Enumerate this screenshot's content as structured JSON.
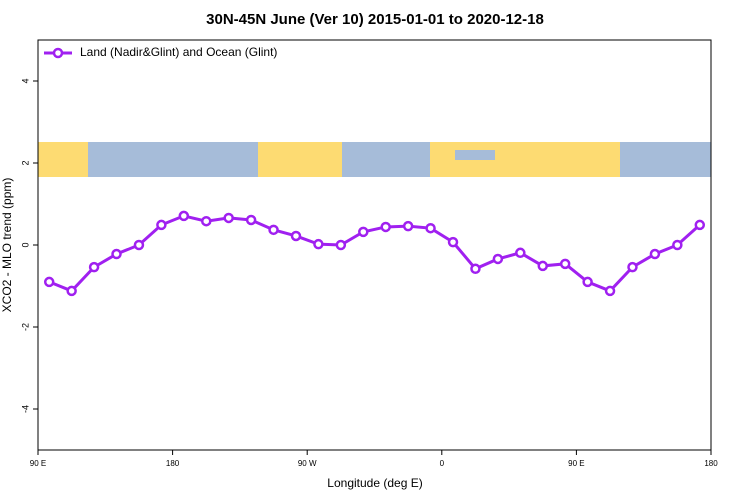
{
  "chart_data": {
    "type": "line",
    "title": "30N-45N June (Ver 10)   2015-01-01 to 2020-12-18",
    "x_label": "Longitude (deg E)",
    "y_label": "XCO2 - MLO trend (ppm)",
    "x": [
      97.5,
      112.5,
      127.5,
      142.5,
      157.5,
      172.5,
      187.5,
      202.5,
      217.5,
      232.5,
      247.5,
      262.5,
      277.5,
      292.5,
      307.5,
      322.5,
      337.5,
      352.5,
      367.5,
      382.5,
      397.5,
      412.5,
      427.5,
      442.5,
      457.5,
      472.5,
      487.5,
      502.5,
      517.5,
      532.5
    ],
    "series": [
      {
        "name": "Land (Nadir&Glint) and Ocean (Glint)",
        "color": "#a020f0",
        "values": [
          -0.9,
          -1.12,
          -0.54,
          -0.22,
          0.0,
          0.49,
          0.71,
          0.58,
          0.66,
          0.61,
          0.37,
          0.22,
          0.02,
          0.0,
          0.32,
          0.44,
          0.46,
          0.41,
          0.07,
          -0.58,
          -0.34,
          -0.19,
          -0.51,
          -0.46,
          -0.9,
          -1.12,
          -0.54,
          -0.22,
          0.0,
          0.49
        ]
      }
    ],
    "xlim": [
      90,
      540
    ],
    "xticks": [
      {
        "value": 90,
        "label": "90 E"
      },
      180,
      {
        "value": 270,
        "label": "90 W"
      },
      {
        "value": 360,
        "label": "0"
      },
      {
        "value": 450,
        "label": "90 E"
      },
      {
        "value": 540,
        "label": "180"
      }
    ],
    "ylim": [
      -5,
      5
    ],
    "yticks": [
      -4,
      -2,
      0,
      2,
      4
    ],
    "legend": "top-left"
  }
}
